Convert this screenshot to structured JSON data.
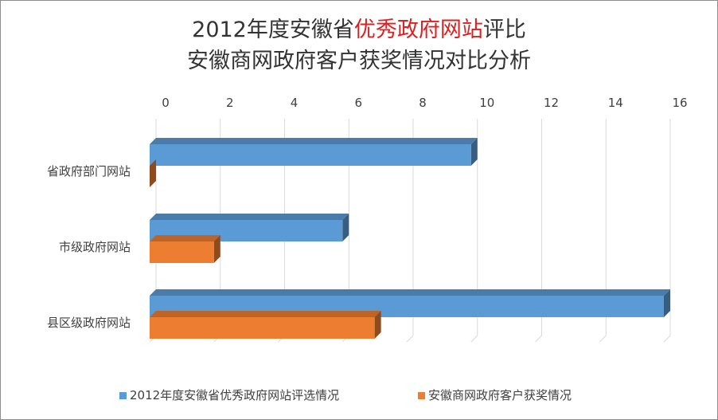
{
  "chart_data": {
    "type": "bar",
    "orientation": "horizontal",
    "title": {
      "line1_prefix": "2012年度安徽省",
      "line1_highlight": "优秀政府网站",
      "line1_suffix": "评比",
      "line2": "安徽商网政府客户获奖情况对比分析",
      "highlight_color": "#e02020"
    },
    "categories": [
      "省政府部门网站",
      "市级政府网站",
      "县区级政府网站"
    ],
    "series": [
      {
        "name": "2012年度安徽省优秀政府网站评选情况",
        "values": [
          10,
          6,
          16
        ],
        "color": "#5b9bd5"
      },
      {
        "name": "安徽商网政府客户获奖情况",
        "values": [
          0,
          2,
          7
        ],
        "color": "#ed7d31"
      }
    ],
    "xlim": [
      0,
      16
    ],
    "xticks": [
      "0",
      "2",
      "4",
      "6",
      "8",
      "10",
      "12",
      "14",
      "16"
    ],
    "axis_position": "top",
    "grid": true,
    "legend_position": "bottom"
  }
}
